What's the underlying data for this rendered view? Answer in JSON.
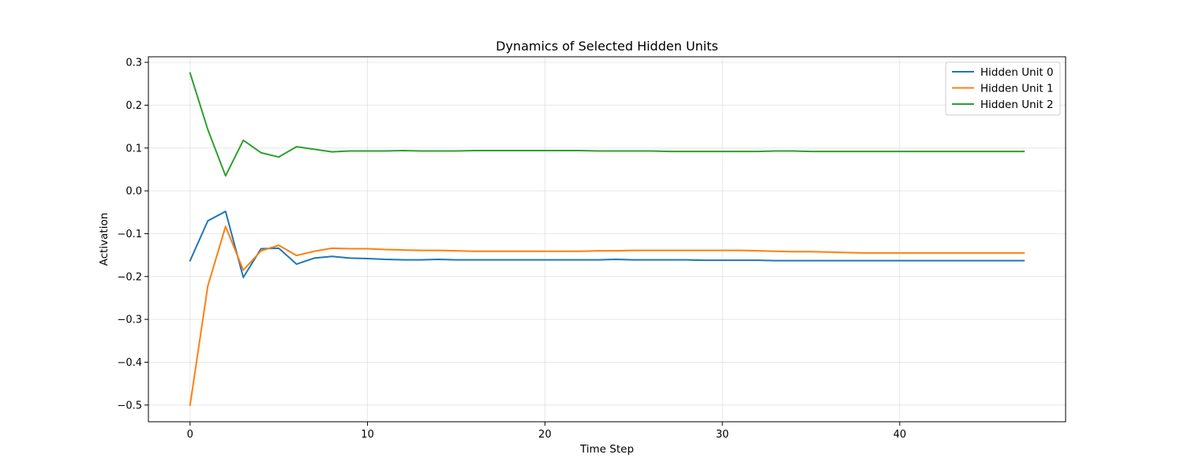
{
  "chart_data": {
    "type": "line",
    "title": "Dynamics of Selected Hidden Units",
    "xlabel": "Time Step",
    "ylabel": "Activation",
    "xlim": [
      -2.35,
      49.35
    ],
    "ylim": [
      -0.539,
      0.313
    ],
    "xticks": [
      0,
      10,
      20,
      30,
      40
    ],
    "xtick_labels": [
      "0",
      "10",
      "20",
      "30",
      "40"
    ],
    "yticks": [
      -0.5,
      -0.4,
      -0.3,
      -0.2,
      -0.1,
      0.0,
      0.1,
      0.2,
      0.3
    ],
    "ytick_labels": [
      "−0.5",
      "−0.4",
      "−0.3",
      "−0.2",
      "−0.1",
      "0.0",
      "0.1",
      "0.2",
      "0.3"
    ],
    "grid": true,
    "legend_position": "top-right",
    "x": [
      0,
      1,
      2,
      3,
      4,
      5,
      6,
      7,
      8,
      9,
      10,
      11,
      12,
      13,
      14,
      15,
      16,
      17,
      18,
      19,
      20,
      21,
      22,
      23,
      24,
      25,
      26,
      27,
      28,
      29,
      30,
      31,
      32,
      33,
      34,
      35,
      36,
      37,
      38,
      39,
      40,
      41,
      42,
      43,
      44,
      45,
      46,
      47
    ],
    "series": [
      {
        "name": "Hidden Unit 0",
        "color": "#1f77b4",
        "values": [
          -0.163,
          -0.07,
          -0.048,
          -0.202,
          -0.135,
          -0.134,
          -0.171,
          -0.157,
          -0.153,
          -0.157,
          -0.158,
          -0.16,
          -0.161,
          -0.161,
          -0.16,
          -0.161,
          -0.161,
          -0.161,
          -0.161,
          -0.161,
          -0.161,
          -0.161,
          -0.161,
          -0.161,
          -0.16,
          -0.161,
          -0.161,
          -0.161,
          -0.161,
          -0.162,
          -0.162,
          -0.162,
          -0.162,
          -0.163,
          -0.163,
          -0.163,
          -0.163,
          -0.163,
          -0.163,
          -0.163,
          -0.163,
          -0.163,
          -0.163,
          -0.163,
          -0.163,
          -0.163,
          -0.163,
          -0.163
        ]
      },
      {
        "name": "Hidden Unit 1",
        "color": "#ff7f0e",
        "values": [
          -0.5,
          -0.222,
          -0.083,
          -0.185,
          -0.14,
          -0.127,
          -0.151,
          -0.141,
          -0.134,
          -0.135,
          -0.135,
          -0.137,
          -0.138,
          -0.139,
          -0.139,
          -0.14,
          -0.141,
          -0.141,
          -0.141,
          -0.141,
          -0.141,
          -0.141,
          -0.141,
          -0.14,
          -0.14,
          -0.139,
          -0.139,
          -0.139,
          -0.139,
          -0.139,
          -0.139,
          -0.139,
          -0.14,
          -0.141,
          -0.142,
          -0.142,
          -0.143,
          -0.144,
          -0.145,
          -0.145,
          -0.145,
          -0.145,
          -0.145,
          -0.145,
          -0.145,
          -0.145,
          -0.145,
          -0.145
        ]
      },
      {
        "name": "Hidden Unit 2",
        "color": "#2ca02c",
        "values": [
          0.275,
          0.143,
          0.035,
          0.118,
          0.089,
          0.079,
          0.103,
          0.097,
          0.091,
          0.093,
          0.093,
          0.093,
          0.094,
          0.093,
          0.093,
          0.093,
          0.094,
          0.094,
          0.094,
          0.094,
          0.094,
          0.094,
          0.094,
          0.093,
          0.093,
          0.093,
          0.093,
          0.092,
          0.092,
          0.092,
          0.092,
          0.092,
          0.092,
          0.093,
          0.093,
          0.092,
          0.092,
          0.092,
          0.092,
          0.092,
          0.092,
          0.092,
          0.092,
          0.092,
          0.092,
          0.092,
          0.092,
          0.092
        ]
      }
    ]
  }
}
